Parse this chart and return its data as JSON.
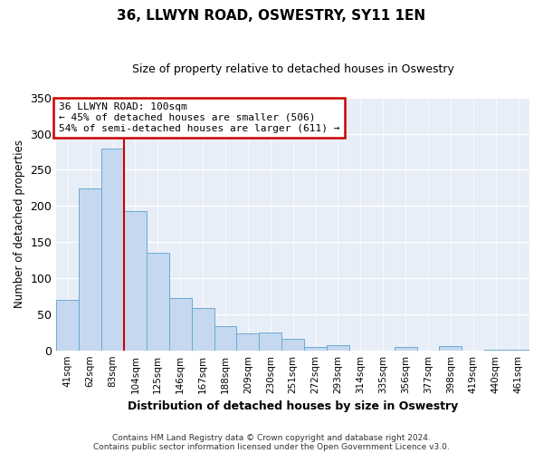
{
  "title": "36, LLWYN ROAD, OSWESTRY, SY11 1EN",
  "subtitle": "Size of property relative to detached houses in Oswestry",
  "xlabel": "Distribution of detached houses by size in Oswestry",
  "ylabel": "Number of detached properties",
  "bar_labels": [
    "41sqm",
    "62sqm",
    "83sqm",
    "104sqm",
    "125sqm",
    "146sqm",
    "167sqm",
    "188sqm",
    "209sqm",
    "230sqm",
    "251sqm",
    "272sqm",
    "293sqm",
    "314sqm",
    "335sqm",
    "356sqm",
    "377sqm",
    "398sqm",
    "419sqm",
    "440sqm",
    "461sqm"
  ],
  "bar_values": [
    70,
    224,
    280,
    193,
    135,
    72,
    58,
    34,
    24,
    25,
    16,
    5,
    7,
    0,
    0,
    5,
    0,
    6,
    0,
    1,
    1
  ],
  "bar_color": "#c5d8f0",
  "bar_edge_color": "#6aaad4",
  "vline_color": "#cc0000",
  "ylim": [
    0,
    350
  ],
  "yticks": [
    0,
    50,
    100,
    150,
    200,
    250,
    300,
    350
  ],
  "annotation_title": "36 LLWYN ROAD: 100sqm",
  "annotation_line1": "← 45% of detached houses are smaller (506)",
  "annotation_line2": "54% of semi-detached houses are larger (611) →",
  "annotation_box_color": "#ffffff",
  "annotation_box_edge": "#cc0000",
  "footer1": "Contains HM Land Registry data © Crown copyright and database right 2024.",
  "footer2": "Contains public sector information licensed under the Open Government Licence v3.0.",
  "background_color": "#ffffff",
  "plot_bg_color": "#e8eef8"
}
